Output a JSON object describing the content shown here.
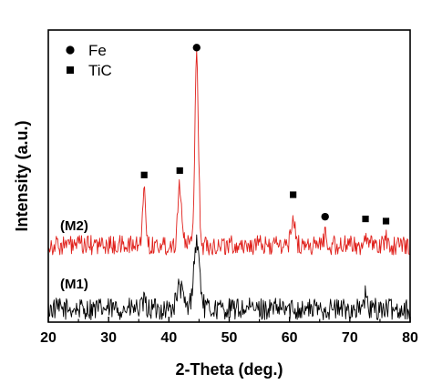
{
  "chart_data": {
    "type": "line",
    "xlabel": "2-Theta (deg.)",
    "ylabel": "Intensity (a.u.)",
    "xlim": [
      20,
      80
    ],
    "x_ticks": [
      20,
      30,
      40,
      50,
      60,
      70,
      80
    ],
    "y_ticks_visible": false,
    "grid": false,
    "legend": {
      "placement": "top-left",
      "entries": [
        {
          "marker": "circle",
          "label": "Fe"
        },
        {
          "marker": "square",
          "label": "TiC"
        }
      ]
    },
    "series": [
      {
        "name": "(M1)",
        "color": "#000000",
        "baseline": 0.06,
        "noise_amplitude": 0.05,
        "peaks": [
          {
            "x": 35.9,
            "height": 0.03,
            "width": 0.25
          },
          {
            "x": 41.8,
            "height": 0.1,
            "width": 0.5
          },
          {
            "x": 44.6,
            "height": 0.3,
            "width": 0.5
          },
          {
            "x": 72.6,
            "height": 0.06,
            "width": 0.2
          }
        ]
      },
      {
        "name": "(M2)",
        "color": "#e0201b",
        "baseline": 0.35,
        "noise_amplitude": 0.045,
        "peaks": [
          {
            "x": 35.9,
            "height": 0.24,
            "width": 0.28
          },
          {
            "x": 41.8,
            "height": 0.28,
            "width": 0.33
          },
          {
            "x": 44.6,
            "height": 0.86,
            "width": 0.3
          },
          {
            "x": 60.6,
            "height": 0.14,
            "width": 0.3
          },
          {
            "x": 65.9,
            "height": 0.05,
            "width": 0.25
          },
          {
            "x": 72.5,
            "height": 0.05,
            "width": 0.22
          },
          {
            "x": 76.0,
            "height": 0.03,
            "width": 0.2
          }
        ]
      }
    ],
    "peak_markers": [
      {
        "phase": "TiC",
        "marker": "square",
        "x": 35.9,
        "y": 0.67
      },
      {
        "phase": "TiC",
        "marker": "square",
        "x": 41.8,
        "y": 0.69
      },
      {
        "phase": "Fe",
        "marker": "circle",
        "x": 44.6,
        "y": 1.25
      },
      {
        "phase": "TiC",
        "marker": "square",
        "x": 60.6,
        "y": 0.58
      },
      {
        "phase": "Fe",
        "marker": "circle",
        "x": 65.9,
        "y": 0.48
      },
      {
        "phase": "TiC",
        "marker": "square",
        "x": 72.6,
        "y": 0.47
      },
      {
        "phase": "TiC",
        "marker": "square",
        "x": 76.0,
        "y": 0.46
      }
    ]
  }
}
